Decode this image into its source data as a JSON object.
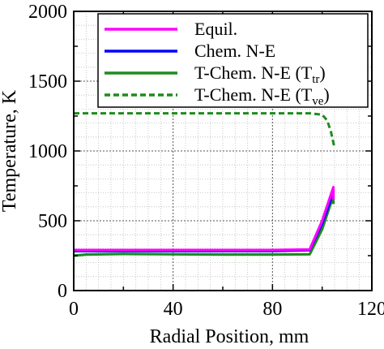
{
  "chart_data": {
    "type": "line",
    "xlabel": "Radial Position, mm",
    "ylabel": "Temperature, K",
    "xlim": [
      0,
      120
    ],
    "ylim": [
      0,
      2000
    ],
    "xticks": [
      0,
      40,
      80,
      120
    ],
    "yticks": [
      0,
      500,
      1000,
      1500,
      2000
    ],
    "grid": "dotted",
    "legend_position": "top-right",
    "series": [
      {
        "name": "Equil.",
        "color": "#ff00ff",
        "style": "solid",
        "x": [
          0,
          20,
          40,
          60,
          80,
          95,
          100,
          104.5,
          104.5
        ],
        "y": [
          290,
          290,
          290,
          290,
          290,
          295,
          500,
          740,
          650
        ]
      },
      {
        "name": "Chem. N-E",
        "color": "#0000ff",
        "style": "solid",
        "x": [
          0,
          20,
          40,
          60,
          80,
          95,
          100,
          104.5
        ],
        "y": [
          283,
          283,
          283,
          283,
          283,
          290,
          480,
          700
        ]
      },
      {
        "name": "T-Chem. N-E (T",
        "name_sub": "tr",
        "color": "#1e8c1e",
        "style": "solid",
        "x": [
          0,
          5,
          20,
          40,
          60,
          80,
          95,
          100,
          104.5,
          104.5
        ],
        "y": [
          250,
          258,
          262,
          260,
          258,
          258,
          260,
          440,
          680,
          620
        ]
      },
      {
        "name": "T-Chem. N-E (T",
        "name_sub": "ve",
        "color": "#1e8c1e",
        "style": "dashed",
        "x": [
          0,
          20,
          40,
          60,
          80,
          95,
          100,
          102,
          103.5,
          104.5,
          105
        ],
        "y": [
          1270,
          1270,
          1270,
          1270,
          1270,
          1270,
          1260,
          1220,
          1140,
          1060,
          1020
        ]
      }
    ]
  }
}
